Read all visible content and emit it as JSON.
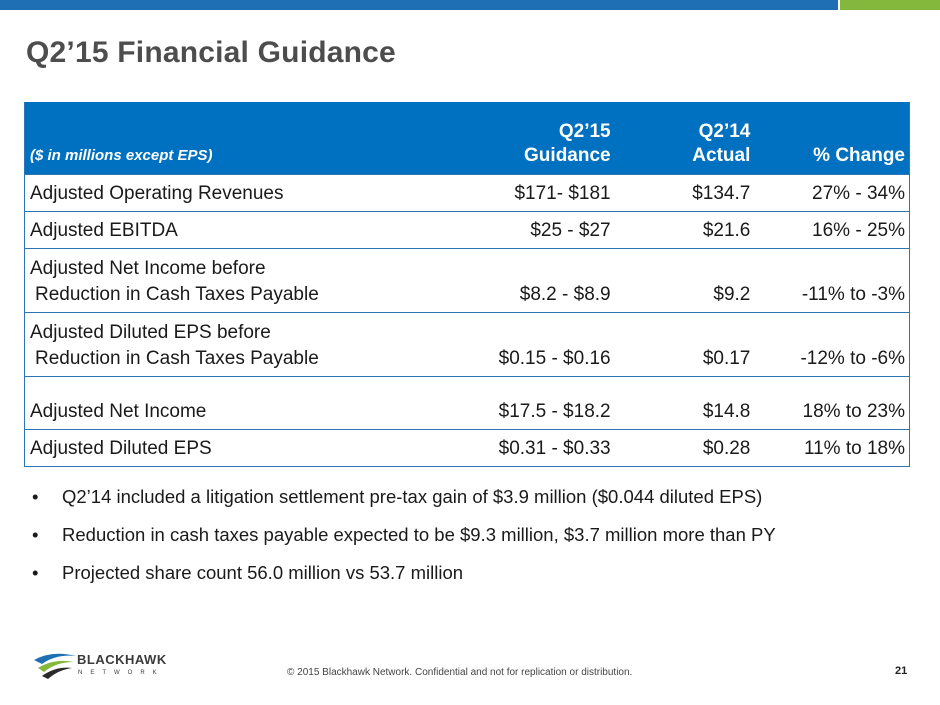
{
  "slide": {
    "title": "Q2’15 Financial Guidance"
  },
  "colors": {
    "brand_blue": "#0070c0",
    "accent_green": "#84b83d",
    "title_gray": "#4d4d4d"
  },
  "table": {
    "header": {
      "label": "($ in millions except EPS)",
      "col1_line1": "Q2’15",
      "col1_line2": "Guidance",
      "col2_line1": "Q2’14",
      "col2_line2": "Actual",
      "col3": "% Change"
    },
    "rows": [
      {
        "label_line1": "Adjusted Operating Revenues",
        "label_line2": "",
        "guidance": "$171- $181",
        "actual": "$134.7",
        "change": "27% - 34%"
      },
      {
        "label_line1": "Adjusted EBITDA",
        "label_line2": "",
        "guidance": "$25 - $27",
        "actual": "$21.6",
        "change": "16% - 25%"
      },
      {
        "label_line1": "Adjusted Net Income before",
        "label_line2": "Reduction in Cash Taxes Payable",
        "guidance": "$8.2 - $8.9",
        "actual": "$9.2",
        "change": "-11% to -3%"
      },
      {
        "label_line1": "Adjusted Diluted EPS before",
        "label_line2": "Reduction in Cash Taxes Payable",
        "guidance": "$0.15 - $0.16",
        "actual": "$0.17",
        "change": "-12% to -6%"
      },
      {
        "label_line1": "Adjusted Net Income",
        "label_line2": "",
        "guidance": "$17.5 - $18.2",
        "actual": "$14.8",
        "change": "18% to 23%"
      },
      {
        "label_line1": "Adjusted Diluted EPS",
        "label_line2": "",
        "guidance": "$0.31 - $0.33",
        "actual": "$0.28",
        "change": "11% to 18%"
      }
    ]
  },
  "bullets": [
    "Q2’14 included a litigation settlement pre-tax gain of $3.9 million ($0.044 diluted EPS)",
    "Reduction in cash taxes payable expected to be $9.3 million, $3.7 million more than PY",
    "Projected share count 56.0 million vs 53.7 million"
  ],
  "bullet_glyph": "•",
  "logo": {
    "word": "BLACKHAWK",
    "sub": "NETWORK"
  },
  "footer": {
    "copyright": "© 2015 Blackhawk Network. Confidential and not for replication or distribution.",
    "page_number": "21"
  }
}
